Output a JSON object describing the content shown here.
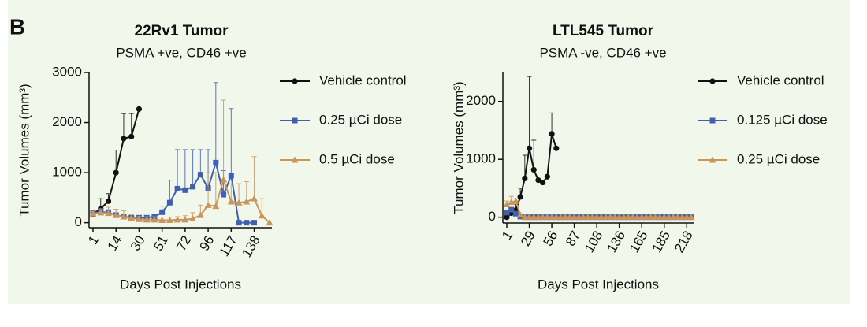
{
  "panel_label": "B",
  "chart_data": [
    {
      "type": "line",
      "title": "22Rv1 Tumor",
      "subtitle": "PSMA +ve, CD46 +ve",
      "x_label": "Days Post Injections",
      "y_label": "Tumor Volumes (mm³)",
      "categories": [
        1,
        null,
        null,
        14,
        null,
        null,
        30,
        null,
        null,
        51,
        null,
        null,
        72,
        null,
        null,
        96,
        null,
        null,
        117,
        null,
        null,
        138,
        null,
        null
      ],
      "ylim": [
        -100,
        3000
      ],
      "yticks": [
        0,
        1000,
        2000,
        3000
      ],
      "series": [
        {
          "name": "Vehicle control",
          "color": "#111111",
          "marker": "circle",
          "values": [
            170,
            280,
            430,
            1000,
            1680,
            1720,
            2270,
            null,
            null,
            null,
            null,
            null,
            null,
            null,
            null,
            null,
            null,
            null,
            null,
            null,
            null,
            null,
            null,
            null
          ],
          "errors": [
            40,
            200,
            150,
            450,
            500,
            460,
            null,
            null,
            null,
            null,
            null,
            null,
            null,
            null,
            null,
            null,
            null,
            null,
            null,
            null,
            null,
            null,
            null,
            null
          ]
        },
        {
          "name": "0.25 µCi dose",
          "color": "#3f5fb0",
          "marker": "square",
          "values": [
            190,
            220,
            200,
            150,
            120,
            100,
            100,
            100,
            120,
            210,
            400,
            680,
            650,
            720,
            960,
            690,
            1200,
            560,
            940,
            0,
            0,
            0,
            null,
            null
          ],
          "errors": [
            30,
            60,
            60,
            50,
            40,
            40,
            40,
            40,
            50,
            120,
            450,
            780,
            810,
            740,
            500,
            770,
            1600,
            480,
            1340,
            null,
            null,
            null,
            null,
            null
          ]
        },
        {
          "name": "0.5 µCi dose",
          "color": "#c8955a",
          "marker": "triangle",
          "values": [
            180,
            200,
            190,
            150,
            120,
            90,
            70,
            60,
            60,
            50,
            50,
            60,
            60,
            80,
            150,
            350,
            330,
            860,
            420,
            400,
            420,
            480,
            140,
            0
          ],
          "errors": [
            40,
            80,
            120,
            120,
            120,
            80,
            60,
            60,
            60,
            60,
            60,
            60,
            80,
            120,
            200,
            650,
            670,
            1590,
            360,
            380,
            400,
            840,
            340,
            null
          ]
        }
      ]
    },
    {
      "type": "line",
      "title": "LTL545 Tumor",
      "subtitle": "PSMA -ve, CD46 +ve",
      "x_label": "Days Post Injections",
      "y_label": "Tumor Volumes (mm³)",
      "categories": [
        1,
        null,
        null,
        null,
        null,
        29,
        null,
        null,
        null,
        null,
        56,
        null,
        null,
        null,
        null,
        87,
        null,
        null,
        null,
        null,
        108,
        null,
        null,
        null,
        null,
        136,
        null,
        null,
        null,
        null,
        165,
        null,
        null,
        null,
        null,
        185,
        null,
        null,
        null,
        null,
        218,
        null
      ],
      "ylim": [
        -100,
        2500
      ],
      "yticks": [
        0,
        1000,
        2000
      ],
      "series": [
        {
          "name": "Vehicle control",
          "color": "#111111",
          "marker": "circle",
          "values": [
            0,
            70,
            120,
            350,
            670,
            1190,
            820,
            640,
            600,
            700,
            1440,
            1190,
            null,
            null,
            null,
            null,
            null,
            null,
            null,
            null,
            null,
            null,
            null,
            null,
            null,
            null,
            null,
            null,
            null,
            null,
            null,
            null,
            null,
            null,
            null,
            null,
            null,
            null,
            null,
            null,
            null,
            null
          ],
          "errors": [
            null,
            30,
            100,
            150,
            400,
            1240,
            510,
            null,
            null,
            null,
            360,
            null,
            null,
            null,
            null,
            null,
            null,
            null,
            null,
            null,
            null,
            null,
            null,
            null,
            null,
            null,
            null,
            null,
            null,
            null,
            null,
            null,
            null,
            null,
            null,
            null,
            null,
            null,
            null,
            null,
            null,
            null
          ]
        },
        {
          "name": "0.125 µCi dose",
          "color": "#3f5fb0",
          "marker": "square",
          "values": [
            80,
            130,
            60,
            10,
            0,
            0,
            0,
            0,
            0,
            0,
            0,
            0,
            0,
            0,
            0,
            0,
            0,
            0,
            0,
            0,
            0,
            0,
            0,
            0,
            0,
            0,
            0,
            0,
            0,
            0,
            0,
            0,
            0,
            0,
            0,
            0,
            0,
            0,
            0,
            0,
            0,
            0
          ]
        },
        {
          "name": "0.25 µCi dose",
          "color": "#c8955a",
          "marker": "triangle",
          "values": [
            220,
            260,
            280,
            40,
            0,
            0,
            0,
            0,
            0,
            0,
            0,
            0,
            0,
            0,
            0,
            0,
            0,
            0,
            0,
            0,
            0,
            0,
            0,
            0,
            0,
            0,
            0,
            0,
            0,
            0,
            0,
            0,
            0,
            0,
            0,
            0,
            0,
            0,
            0,
            0,
            0,
            0
          ],
          "errors": [
            60,
            100,
            null,
            null,
            null,
            null,
            null,
            null,
            null,
            null,
            null,
            null,
            null,
            null,
            null,
            null,
            null,
            null,
            null,
            null,
            null,
            null,
            null,
            null,
            null,
            null,
            null,
            null,
            null,
            null,
            null,
            null,
            null,
            null,
            null,
            null,
            null,
            null,
            null,
            null,
            null,
            null
          ]
        }
      ]
    }
  ]
}
